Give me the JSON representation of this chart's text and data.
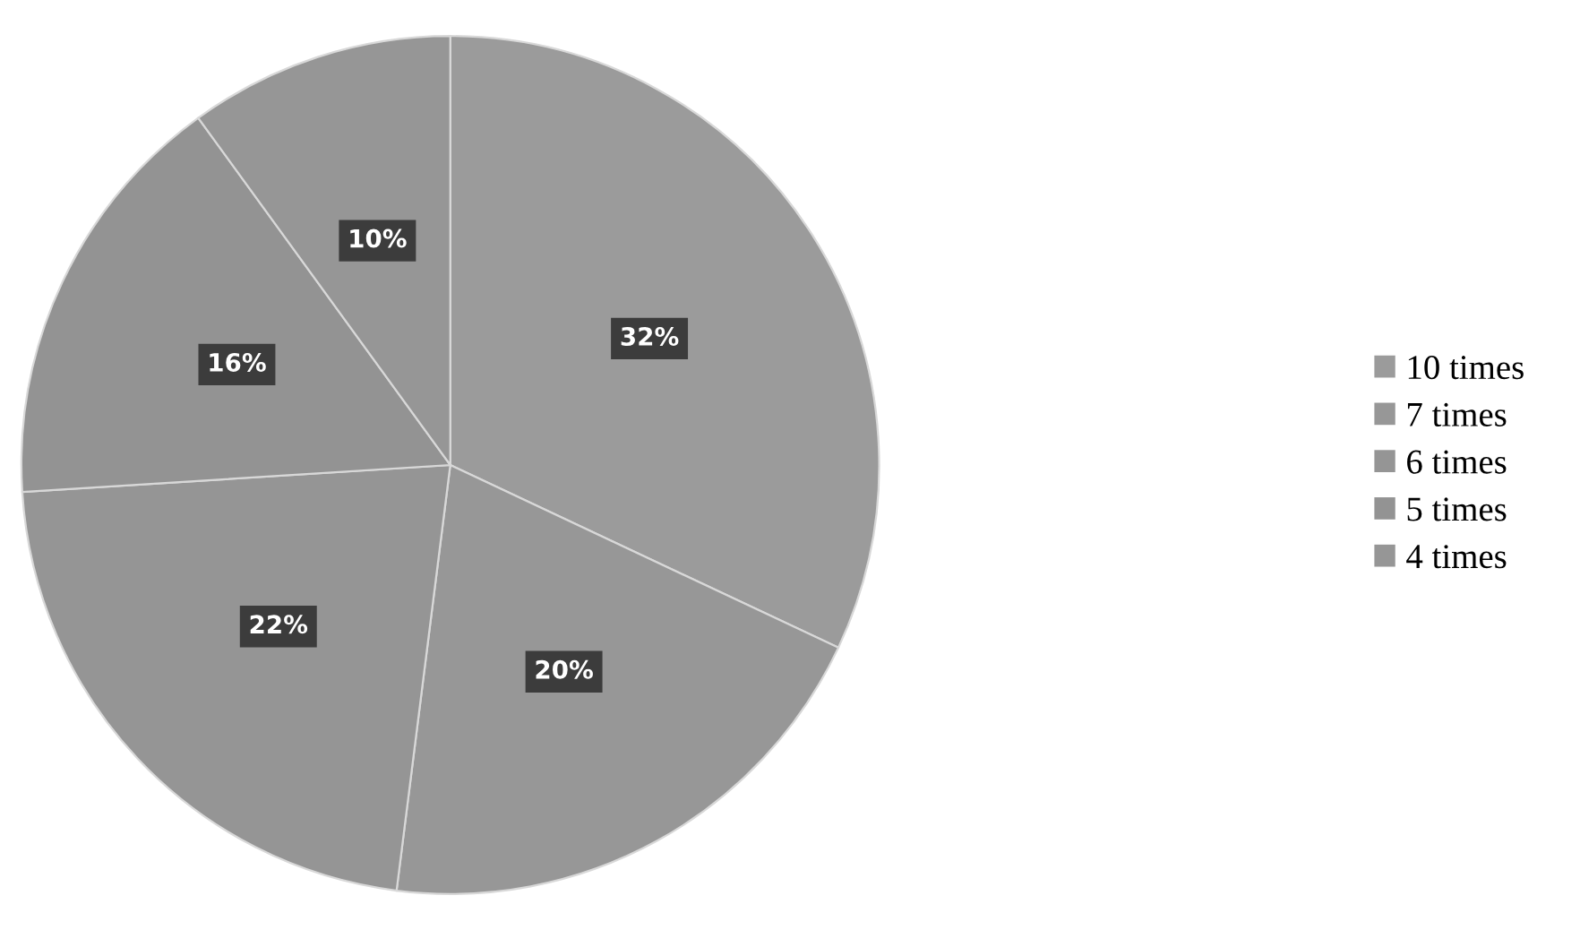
{
  "chart_data": {
    "type": "pie",
    "categories": [
      "10 times",
      "7 times",
      "6 times",
      "5 times",
      "4 times"
    ],
    "values": [
      32,
      20,
      22,
      16,
      10
    ],
    "colors": [
      "#9b9b9b",
      "#979797",
      "#959595",
      "#939393",
      "#969696"
    ],
    "value_labels": [
      "32%",
      "20%",
      "22%",
      "16%",
      "10%"
    ],
    "legend": "right"
  }
}
